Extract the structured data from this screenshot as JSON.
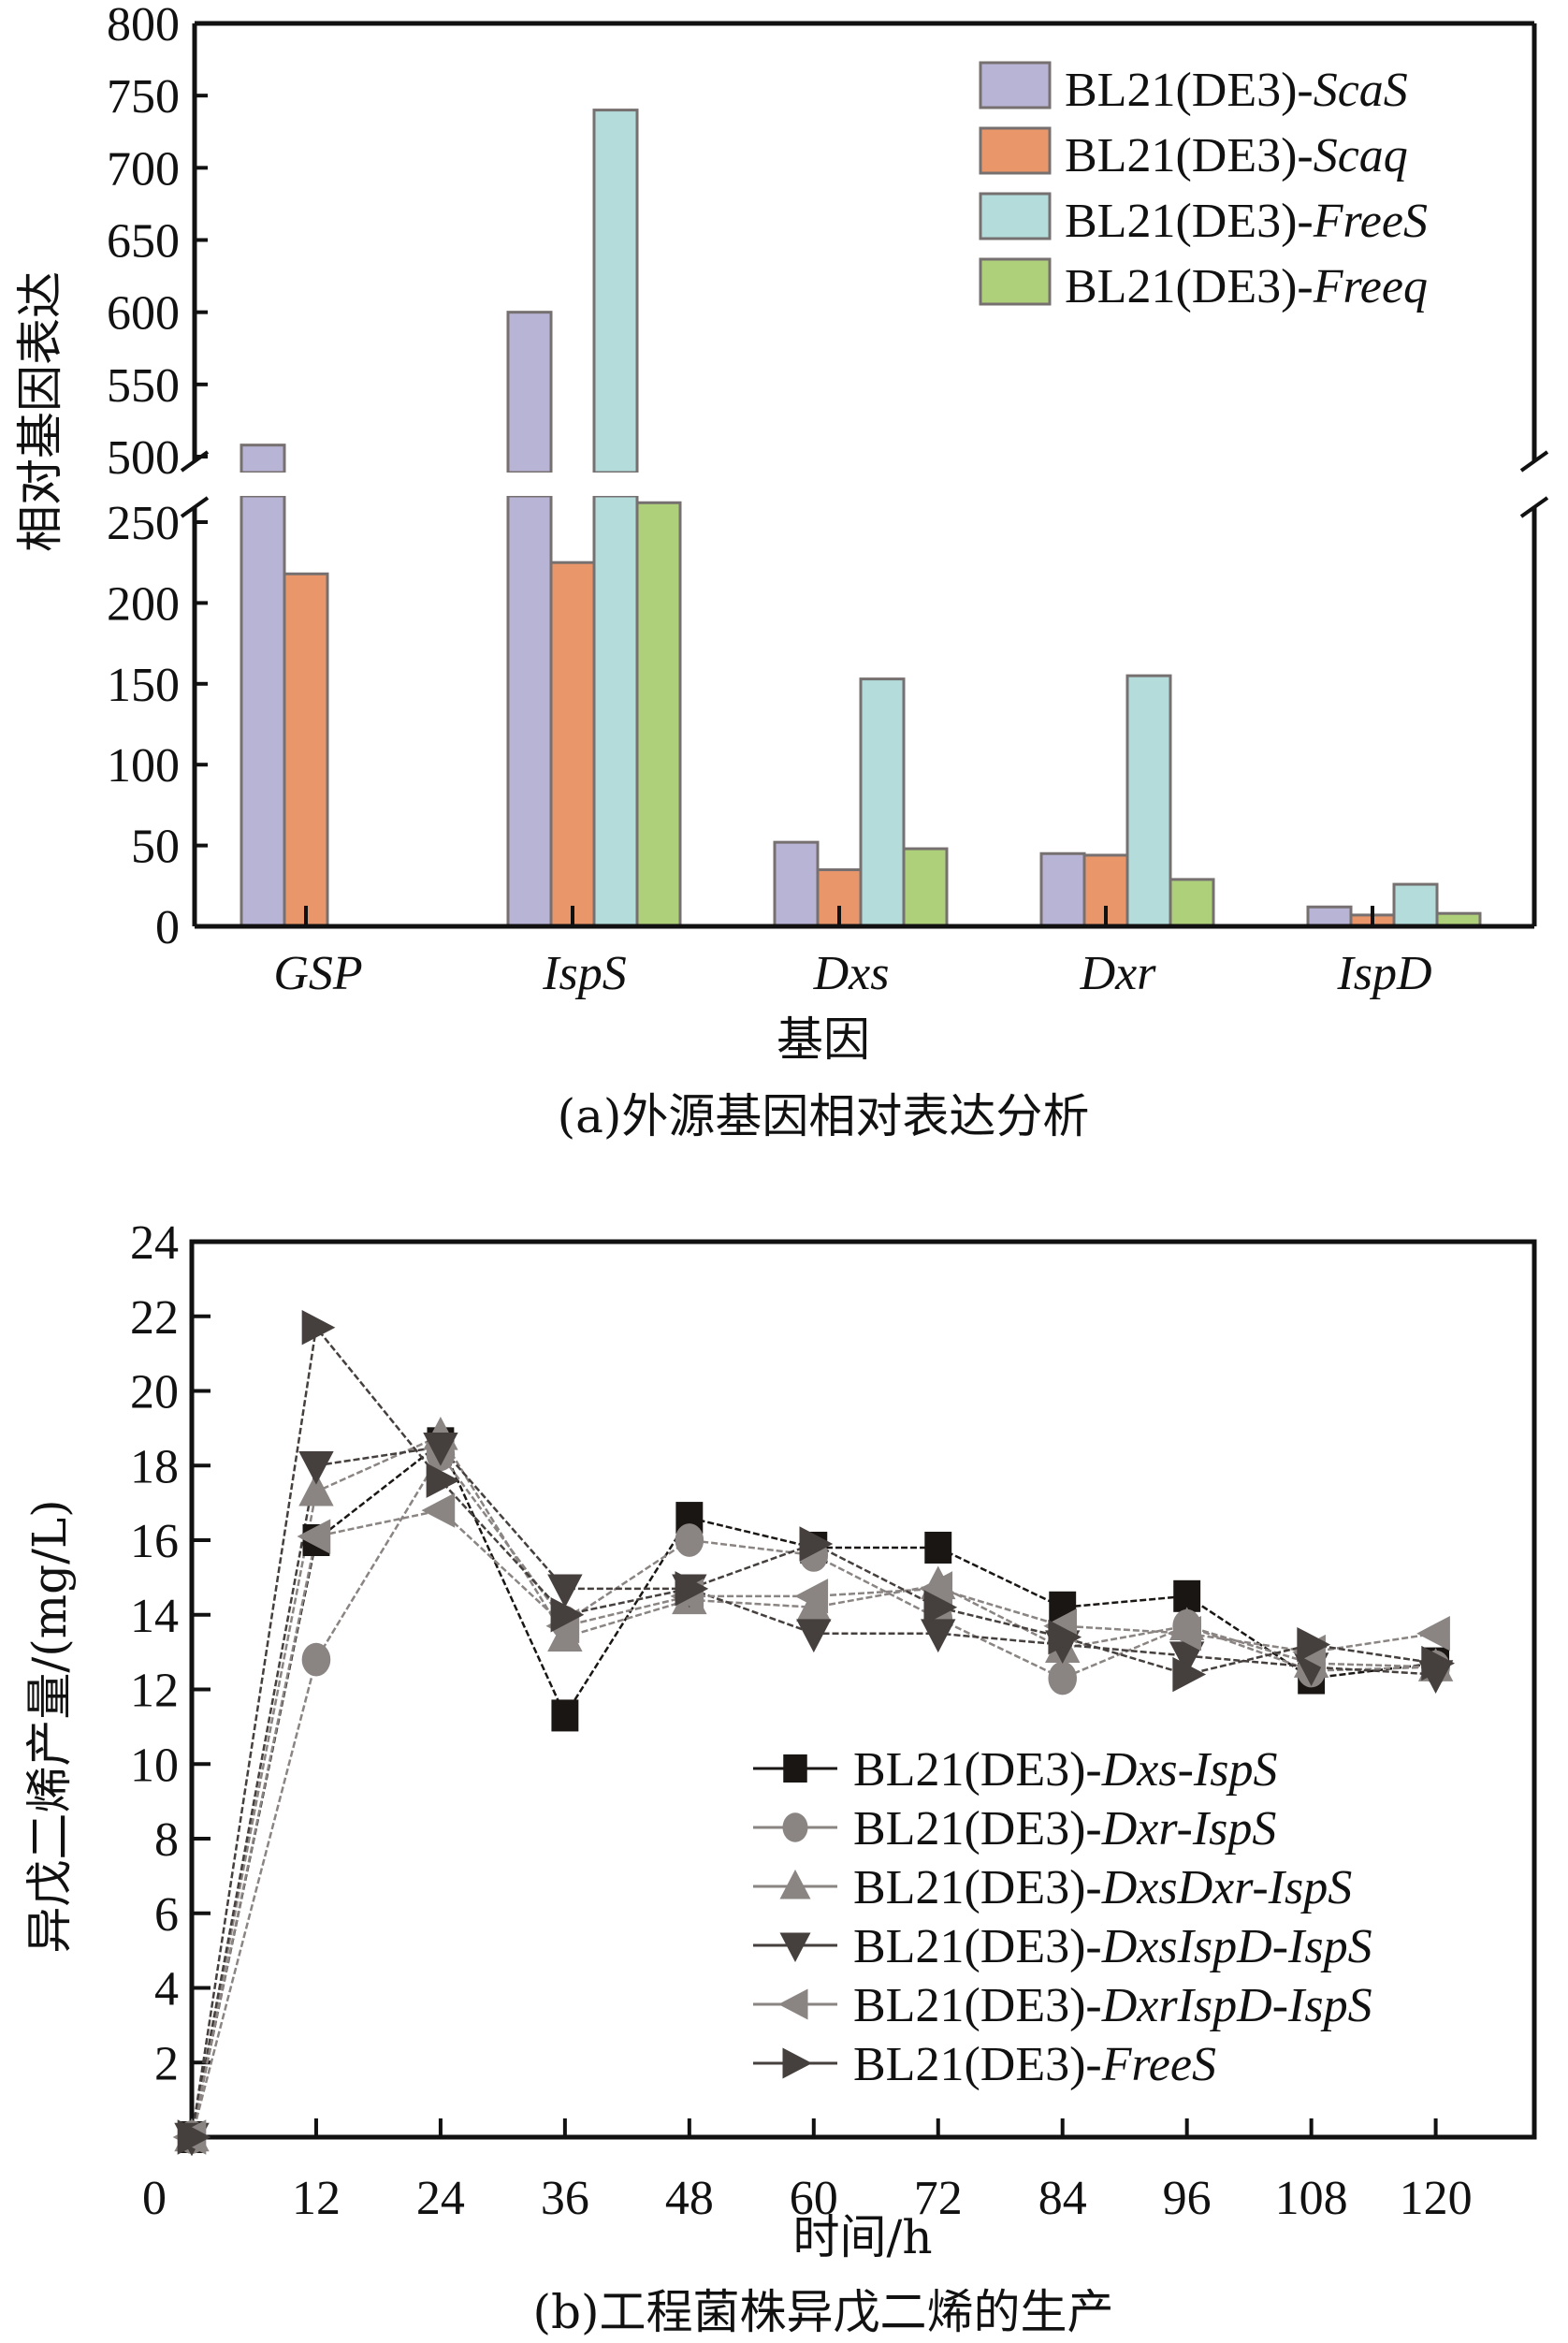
{
  "chart_data": [
    {
      "id": "a",
      "type": "bar",
      "title": "",
      "caption": "(a)外源基因相对表达分析",
      "xlabel": "基因",
      "ylabel": "相对基因表达",
      "categories": [
        "GSP",
        "IspS",
        "Dxs",
        "Dxr",
        "IspD"
      ],
      "y_axis_break": {
        "lower_range": [
          0,
          270
        ],
        "upper_range": [
          490,
          800
        ]
      },
      "yticks_lower": [
        0,
        50,
        100,
        150,
        200,
        250
      ],
      "yticks_upper": [
        500,
        550,
        600,
        650,
        700,
        750,
        800
      ],
      "legend_position": "top-right",
      "series": [
        {
          "name_prefix": "BL21(DE3)-",
          "name_italic": "ScaS",
          "color": "#b8b4d6",
          "values": [
            508,
            600,
            52,
            45,
            12
          ]
        },
        {
          "name_prefix": "BL21(DE3)-",
          "name_italic": "Scaq",
          "color": "#e9976a",
          "values": [
            218,
            225,
            35,
            44,
            7
          ]
        },
        {
          "name_prefix": "BL21(DE3)-",
          "name_italic": "FreeS",
          "color": "#b3dcdb",
          "values": [
            null,
            740,
            153,
            155,
            26
          ]
        },
        {
          "name_prefix": "BL21(DE3)-",
          "name_italic": "Freeq",
          "color": "#afd07a",
          "values": [
            null,
            262,
            48,
            29,
            8
          ]
        }
      ]
    },
    {
      "id": "b",
      "type": "line",
      "title": "",
      "caption": "(b)工程菌株异戊二烯的生产",
      "xlabel": "时间/h",
      "ylabel": "异戊二烯产量/(mg/L)",
      "x": [
        0,
        12,
        24,
        36,
        48,
        60,
        72,
        84,
        96,
        108,
        120
      ],
      "xlim": [
        0,
        128
      ],
      "ylim": [
        0,
        24
      ],
      "xticks": [
        0,
        12,
        24,
        36,
        48,
        60,
        72,
        84,
        96,
        108,
        120
      ],
      "yticks": [
        0,
        2,
        4,
        6,
        8,
        10,
        12,
        14,
        16,
        18,
        20,
        22,
        24
      ],
      "legend_position": "bottom-right",
      "series": [
        {
          "name_prefix": "BL21(DE3)-",
          "name_italic": "Dxs-IspS",
          "marker": "square",
          "color": "#1a1614",
          "values": [
            0,
            16.0,
            18.6,
            11.3,
            16.6,
            15.8,
            15.8,
            14.2,
            14.5,
            12.3,
            12.7
          ]
        },
        {
          "name_prefix": "BL21(DE3)-",
          "name_italic": "Dxr-IspS",
          "marker": "circle",
          "color": "#8a8482",
          "values": [
            0,
            12.8,
            18.3,
            13.8,
            16.0,
            15.6,
            13.9,
            12.3,
            13.7,
            12.5,
            12.6
          ]
        },
        {
          "name_prefix": "BL21(DE3)-",
          "name_italic": "DxsDxr-IspS",
          "marker": "triangle-up",
          "color": "#8a8482",
          "values": [
            0,
            17.3,
            18.8,
            13.4,
            14.4,
            14.2,
            14.8,
            13.1,
            13.7,
            12.7,
            12.6
          ]
        },
        {
          "name_prefix": "BL21(DE3)-",
          "name_italic": "DxsIspD-IspS",
          "marker": "triangle-down",
          "color": "#453f3d",
          "values": [
            0,
            18.0,
            18.5,
            14.7,
            14.7,
            13.5,
            13.5,
            13.2,
            12.9,
            12.6,
            12.4
          ]
        },
        {
          "name_prefix": "BL21(DE3)-",
          "name_italic": "DxrIspD-IspS",
          "marker": "triangle-left",
          "color": "#8a8482",
          "values": [
            0,
            16.1,
            16.8,
            13.7,
            14.5,
            14.5,
            14.7,
            13.7,
            13.5,
            13.0,
            13.5
          ]
        },
        {
          "name_prefix": "BL21(DE3)-",
          "name_italic": "FreeS",
          "marker": "triangle-right",
          "color": "#453f3d",
          "values": [
            0,
            21.7,
            17.6,
            14.0,
            14.7,
            15.9,
            14.2,
            13.4,
            12.4,
            13.2,
            12.7
          ]
        }
      ]
    }
  ]
}
